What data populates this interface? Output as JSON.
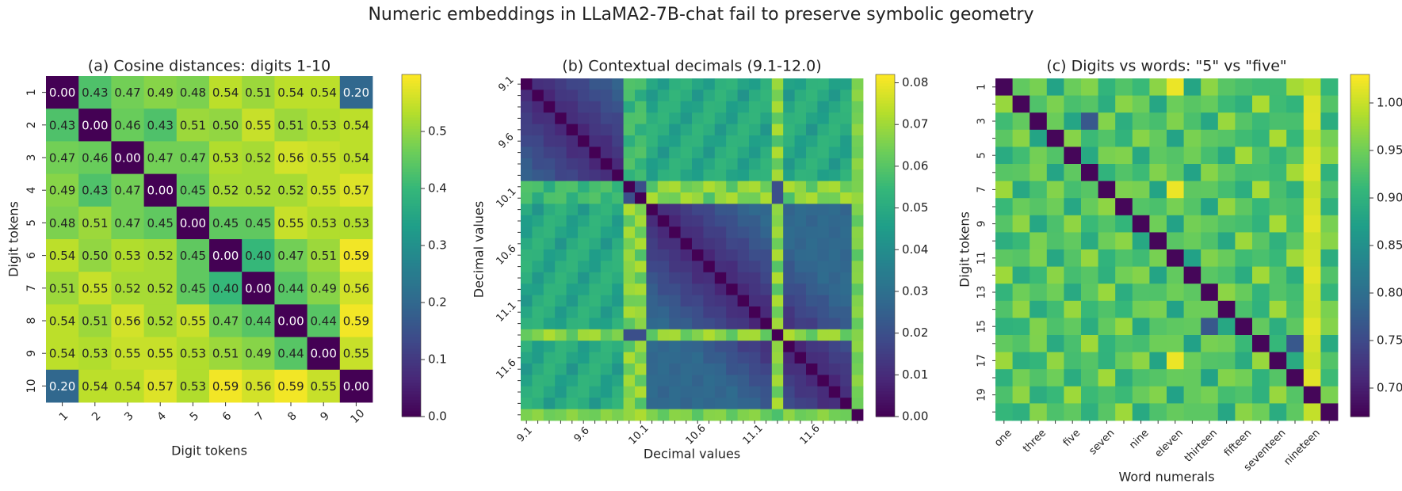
{
  "figure_title": "Numeric embeddings in LLaMA2-7B-chat fail to preserve symbolic geometry",
  "colormap": [
    "#440154",
    "#482878",
    "#3e4989",
    "#31688e",
    "#26828e",
    "#1f9e89",
    "#35b779",
    "#6ece58",
    "#b5de2b",
    "#fde725"
  ],
  "chart_data": [
    {
      "type": "heatmap",
      "title": "(a) Cosine distances: digits 1-10",
      "xlabel": "Digit tokens",
      "ylabel": "Digit tokens",
      "row_labels": [
        "1",
        "2",
        "3",
        "4",
        "5",
        "6",
        "7",
        "8",
        "9",
        "10"
      ],
      "col_labels": [
        "1",
        "2",
        "3",
        "4",
        "5",
        "6",
        "7",
        "8",
        "9",
        "10"
      ],
      "value_range": [
        0.0,
        0.6
      ],
      "colorbar_ticks": [
        0.0,
        0.1,
        0.2,
        0.3,
        0.4,
        0.5
      ],
      "colorbar_tick_labels": [
        "0.0",
        "0.1",
        "0.2",
        "0.3",
        "0.4",
        "0.5"
      ],
      "show_annotations": true,
      "values": [
        [
          0.0,
          0.43,
          0.47,
          0.49,
          0.48,
          0.54,
          0.51,
          0.54,
          0.54,
          0.2
        ],
        [
          0.43,
          0.0,
          0.46,
          0.43,
          0.51,
          0.5,
          0.55,
          0.51,
          0.53,
          0.54
        ],
        [
          0.47,
          0.46,
          0.0,
          0.47,
          0.47,
          0.53,
          0.52,
          0.56,
          0.55,
          0.54
        ],
        [
          0.49,
          0.43,
          0.47,
          0.0,
          0.45,
          0.52,
          0.52,
          0.52,
          0.55,
          0.57
        ],
        [
          0.48,
          0.51,
          0.47,
          0.45,
          0.0,
          0.45,
          0.45,
          0.55,
          0.53,
          0.53
        ],
        [
          0.54,
          0.5,
          0.53,
          0.52,
          0.45,
          0.0,
          0.4,
          0.47,
          0.51,
          0.59
        ],
        [
          0.51,
          0.55,
          0.52,
          0.52,
          0.45,
          0.4,
          0.0,
          0.44,
          0.49,
          0.56
        ],
        [
          0.54,
          0.51,
          0.56,
          0.52,
          0.55,
          0.47,
          0.44,
          0.0,
          0.44,
          0.59
        ],
        [
          0.54,
          0.53,
          0.55,
          0.55,
          0.53,
          0.51,
          0.49,
          0.44,
          0.0,
          0.55
        ],
        [
          0.2,
          0.54,
          0.54,
          0.57,
          0.53,
          0.59,
          0.56,
          0.59,
          0.55,
          0.0
        ]
      ]
    },
    {
      "type": "heatmap",
      "title": "(b) Contextual decimals (9.1-12.0)",
      "xlabel": "Decimal values",
      "ylabel": "Decimal values",
      "grid_size": 30,
      "first_value": 9.1,
      "step": 0.1,
      "tick_labels": [
        "9.1",
        "9.6",
        "10.1",
        "10.6",
        "11.1",
        "11.6"
      ],
      "value_range": [
        0.0,
        0.082
      ],
      "colorbar_ticks": [
        0.0,
        0.01,
        0.02,
        0.03,
        0.04,
        0.05,
        0.06,
        0.07,
        0.08
      ],
      "colorbar_tick_labels": [
        "0.00",
        "0.01",
        "0.02",
        "0.03",
        "0.04",
        "0.05",
        "0.06",
        "0.07",
        "0.08"
      ],
      "show_annotations": false
    },
    {
      "type": "heatmap",
      "title": "(c) Digits vs words: \"5\" vs \"five\"",
      "xlabel": "Word numerals",
      "ylabel": "Digit tokens",
      "grid_size": 20,
      "row_tick_labels": [
        "1",
        "3",
        "5",
        "7",
        "9",
        "11",
        "13",
        "15",
        "17",
        "19"
      ],
      "col_tick_labels": [
        "one",
        "three",
        "five",
        "seven",
        "nine",
        "eleven",
        "thirteen",
        "fifteen",
        "seventeen",
        "nineteen"
      ],
      "value_range": [
        0.67,
        1.03
      ],
      "colorbar_ticks": [
        0.7,
        0.75,
        0.8,
        0.85,
        0.9,
        0.95,
        1.0
      ],
      "colorbar_tick_labels": [
        "0.70",
        "0.75",
        "0.80",
        "0.85",
        "0.90",
        "0.95",
        "1.00"
      ],
      "show_annotations": false
    }
  ]
}
